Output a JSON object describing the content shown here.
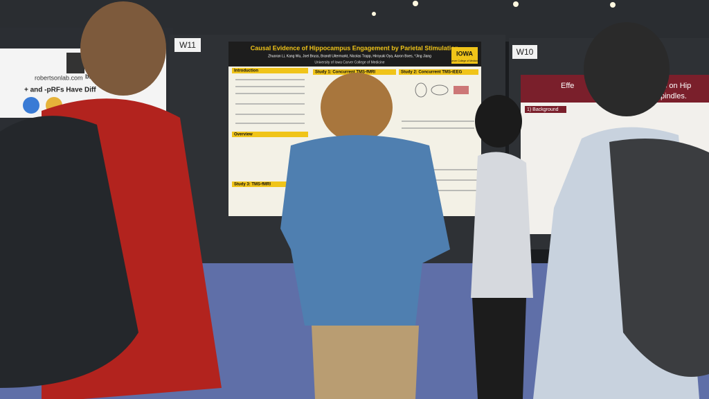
{
  "signs": {
    "left": "W11",
    "right": "W10"
  },
  "center_poster": {
    "title": "Causal Evidence of Hippocampus Engagement by Parietal Stimulation",
    "authors": "Zhuoran Li, Kang Wu, Joel Bruss, Brandt Uitermarkt, Nicolas Trapp, Hiroyuki Oya, Aaron Boes, *Jing Jiang",
    "affiliation": "University of Iowa Carver College of Medicine",
    "logo": "IOWA",
    "logo_sub": "Carver College of Medicine",
    "sections": [
      "Introduction",
      "Study 1: Concurrent TMS-fMRI",
      "Study 2: Concurrent TMS-iEEG",
      "Overview",
      "Study 3: TMS-fMRI"
    ]
  },
  "left_poster": {
    "url": "robertsonlab.com",
    "badge": "bioRx",
    "heading": "+ and -pRFs Have Diff"
  },
  "right_poster": {
    "title_left": "Effe",
    "title_right": "ow Oscillations on Hip",
    "title_line2": "al Spindles.",
    "section": "1) Background"
  }
}
